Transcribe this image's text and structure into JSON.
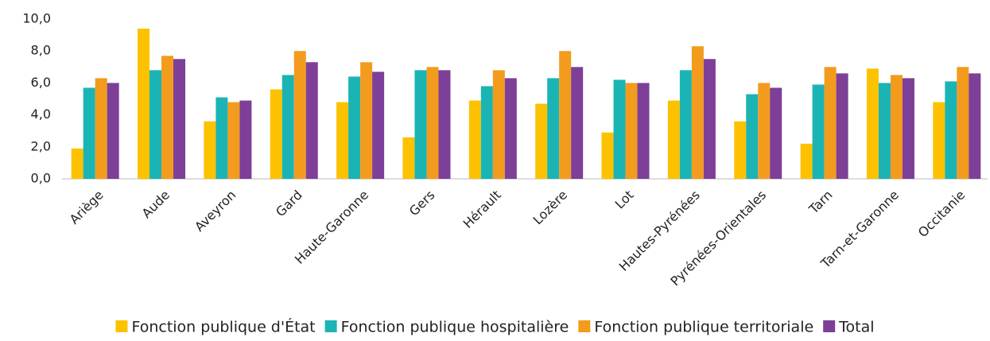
{
  "chart_data": {
    "type": "bar",
    "categories": [
      "Ariège",
      "Aude",
      "Aveyron",
      "Gard",
      "Haute-Garonne",
      "Gers",
      "Hérault",
      "Lozère",
      "Lot",
      "Hautes-Pyrénées",
      "Pyrénées-Orientales",
      "Tarn",
      "Tarn-et-Garonne",
      "Occitanie"
    ],
    "series": [
      {
        "name": "Fonction publique d'État",
        "color": "#fcc200",
        "values": [
          1.9,
          9.4,
          3.6,
          5.6,
          4.8,
          2.6,
          4.9,
          4.7,
          2.9,
          4.9,
          3.6,
          2.2,
          6.9,
          4.8
        ]
      },
      {
        "name": "Fonction publique hospitalière",
        "color": "#1bb4b4",
        "values": [
          5.7,
          6.8,
          5.1,
          6.5,
          6.4,
          6.8,
          5.8,
          6.3,
          6.2,
          6.8,
          5.3,
          5.9,
          6.0,
          6.1
        ]
      },
      {
        "name": "Fonction publique territoriale",
        "color": "#f39b1d",
        "values": [
          6.3,
          7.7,
          4.8,
          8.0,
          7.3,
          7.0,
          6.8,
          8.0,
          6.0,
          8.3,
          6.0,
          7.0,
          6.5,
          7.0
        ]
      },
      {
        "name": "Total",
        "color": "#7d3f98",
        "values": [
          6.0,
          7.5,
          4.9,
          7.3,
          6.7,
          6.8,
          6.3,
          7.0,
          6.0,
          7.5,
          5.7,
          6.6,
          6.3,
          6.6
        ]
      }
    ],
    "ylim": [
      0,
      10
    ],
    "yticks": [
      {
        "value": 0,
        "label": "0,0"
      },
      {
        "value": 2,
        "label": "2,0"
      },
      {
        "value": 4,
        "label": "4,0"
      },
      {
        "value": 6,
        "label": "6,0"
      },
      {
        "value": 8,
        "label": "8,0"
      },
      {
        "value": 10,
        "label": "10,0"
      }
    ],
    "grid": false,
    "legend": "bottom"
  }
}
